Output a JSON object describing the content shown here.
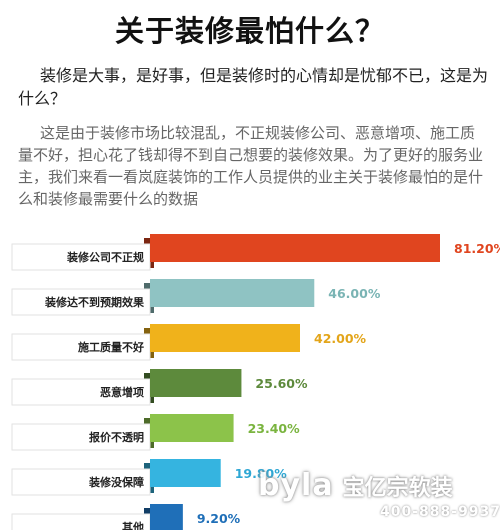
{
  "title": "关于装修最怕什么？",
  "question": "装修是大事，是好事，但是装修时的心情却是忧郁不已，这是为什么？",
  "intro": "这是由于装修市场比较混乱，不正规装修公司、恶意增项、施工质量不好，担心花了钱却得不到自己想要的装修效果。为了更好的服务业主，我们来看一看岚庭装饰的工作人员提供的业主关于装修最怕的是什么和装修最需要什么的数据",
  "watermark": {
    "logo": "byla",
    "brand": "宝亿宗软装",
    "phone": "400-888-9937"
  },
  "chart_data": {
    "type": "bar",
    "orientation": "horizontal",
    "categories": [
      "装修公司不正规",
      "装修达不到预期效果",
      "施工质量不好",
      "恶意增项",
      "报价不透明",
      "装修没保障",
      "其他"
    ],
    "values": [
      81.2,
      46.0,
      42.0,
      25.6,
      23.4,
      19.8,
      9.2
    ],
    "value_labels": [
      "81.20%",
      "46.00%",
      "42.00%",
      "25.60%",
      "23.40%",
      "19.80%",
      "9.20%"
    ],
    "colors": [
      "#e0451f",
      "#8fc3c3",
      "#f0b21b",
      "#5d8a3c",
      "#8cc34a",
      "#35b4e0",
      "#1f6fb8"
    ],
    "label_colors": [
      "#e0451f",
      "#7ab4b4",
      "#e3a51a",
      "#5d8a3c",
      "#7ab43f",
      "#2ea7d4",
      "#1f6fb8"
    ],
    "title": "",
    "xlabel": "",
    "ylabel": "",
    "xlim": [
      0,
      81.2
    ],
    "grid": false,
    "legend": "none"
  }
}
